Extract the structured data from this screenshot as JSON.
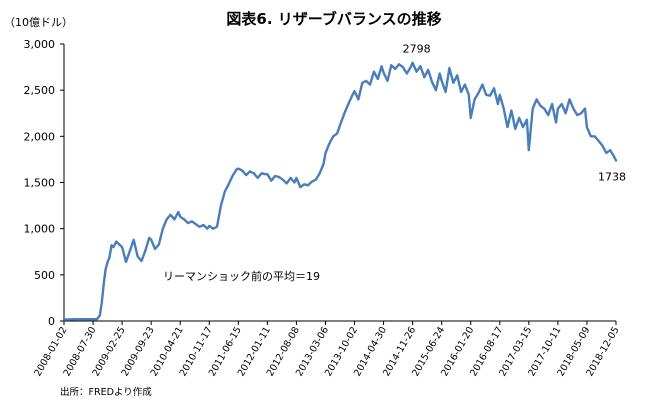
{
  "chart_data": {
    "type": "line",
    "title": "図表6. リザーブバランスの推移",
    "unit_label": "（10億ドル）",
    "ylim": [
      0,
      3000
    ],
    "y_ticks": [
      "0",
      "500",
      "1,000",
      "1,500",
      "2,000",
      "2,500",
      "3,000"
    ],
    "y_tick_values": [
      0,
      500,
      1000,
      1500,
      2000,
      2500,
      3000
    ],
    "x_tick_labels": [
      "2008-01-02",
      "2008-07-30",
      "2009-02-25",
      "2009-09-23",
      "2010-04-21",
      "2010-11-17",
      "2011-06-15",
      "2012-01-11",
      "2012-08-08",
      "2013-03-06",
      "2013-10-02",
      "2014-04-30",
      "2014-11-26",
      "2015-06-24",
      "2016-01-20",
      "2016-08-17",
      "2017-03-15",
      "2017-10-11",
      "2018-05-09",
      "2018-12-05"
    ],
    "annotation_text": "リーマンショック前の平均＝19",
    "series": [
      {
        "color": "#4a7ebb",
        "x": [
          "2008-01-02",
          "2008-04-02",
          "2008-07-02",
          "2008-08-27",
          "2008-09-17",
          "2008-10-01",
          "2008-10-15",
          "2008-10-29",
          "2008-11-12",
          "2008-11-26",
          "2008-12-10",
          "2008-12-24",
          "2009-01-14",
          "2009-02-04",
          "2009-02-25",
          "2009-03-25",
          "2009-04-22",
          "2009-05-20",
          "2009-06-17",
          "2009-07-15",
          "2009-08-12",
          "2009-09-09",
          "2009-09-23",
          "2009-10-21",
          "2009-11-18",
          "2009-12-16",
          "2010-01-13",
          "2010-02-10",
          "2010-03-10",
          "2010-04-07",
          "2010-04-21",
          "2010-05-19",
          "2010-06-16",
          "2010-07-14",
          "2010-08-11",
          "2010-09-08",
          "2010-10-06",
          "2010-11-03",
          "2010-11-17",
          "2010-12-15",
          "2011-01-12",
          "2011-02-09",
          "2011-03-09",
          "2011-04-06",
          "2011-05-04",
          "2011-06-01",
          "2011-06-15",
          "2011-07-13",
          "2011-08-10",
          "2011-09-07",
          "2011-10-05",
          "2011-11-02",
          "2011-11-30",
          "2011-12-28",
          "2012-01-11",
          "2012-02-08",
          "2012-03-07",
          "2012-04-04",
          "2012-05-02",
          "2012-05-30",
          "2012-06-27",
          "2012-07-25",
          "2012-08-08",
          "2012-09-05",
          "2012-10-03",
          "2012-10-31",
          "2012-11-28",
          "2012-12-26",
          "2013-01-23",
          "2013-02-20",
          "2013-03-06",
          "2013-04-03",
          "2013-05-01",
          "2013-05-29",
          "2013-06-26",
          "2013-07-24",
          "2013-08-21",
          "2013-09-18",
          "2013-10-02",
          "2013-10-30",
          "2013-11-27",
          "2013-12-25",
          "2014-01-22",
          "2014-02-19",
          "2014-03-19",
          "2014-04-16",
          "2014-04-30",
          "2014-05-28",
          "2014-06-25",
          "2014-07-23",
          "2014-08-20",
          "2014-09-17",
          "2014-10-15",
          "2014-11-12",
          "2014-11-26",
          "2014-12-24",
          "2015-01-21",
          "2015-02-18",
          "2015-03-18",
          "2015-04-15",
          "2015-05-13",
          "2015-06-10",
          "2015-06-24",
          "2015-07-22",
          "2015-08-19",
          "2015-09-16",
          "2015-10-14",
          "2015-11-11",
          "2015-12-09",
          "2016-01-06",
          "2016-01-20",
          "2016-02-17",
          "2016-03-16",
          "2016-04-13",
          "2016-05-11",
          "2016-06-08",
          "2016-07-06",
          "2016-08-03",
          "2016-08-17",
          "2016-09-14",
          "2016-10-12",
          "2016-11-09",
          "2016-12-07",
          "2017-01-04",
          "2017-02-01",
          "2017-03-01",
          "2017-03-15",
          "2017-04-12",
          "2017-05-10",
          "2017-06-07",
          "2017-07-05",
          "2017-08-02",
          "2017-08-30",
          "2017-09-27",
          "2017-10-11",
          "2017-11-08",
          "2017-12-06",
          "2018-01-03",
          "2018-01-31",
          "2018-02-28",
          "2018-03-28",
          "2018-04-25",
          "2018-05-09",
          "2018-06-06",
          "2018-07-04",
          "2018-08-01",
          "2018-08-29",
          "2018-09-26",
          "2018-10-24",
          "2018-11-21",
          "2018-12-05"
        ],
        "values": [
          15,
          19,
          19,
          20,
          60,
          200,
          400,
          560,
          640,
          690,
          820,
          800,
          860,
          830,
          800,
          640,
          760,
          880,
          700,
          650,
          760,
          900,
          880,
          780,
          830,
          1000,
          1100,
          1150,
          1100,
          1180,
          1130,
          1100,
          1060,
          1080,
          1050,
          1020,
          1040,
          1000,
          1030,
          1000,
          1020,
          1250,
          1400,
          1480,
          1570,
          1640,
          1650,
          1630,
          1580,
          1620,
          1600,
          1550,
          1600,
          1590,
          1590,
          1520,
          1570,
          1560,
          1530,
          1490,
          1550,
          1500,
          1550,
          1450,
          1480,
          1470,
          1510,
          1530,
          1600,
          1700,
          1820,
          1920,
          2000,
          2030,
          2150,
          2260,
          2360,
          2450,
          2490,
          2400,
          2580,
          2600,
          2560,
          2700,
          2620,
          2760,
          2690,
          2600,
          2770,
          2730,
          2780,
          2750,
          2680,
          2750,
          2798,
          2700,
          2760,
          2640,
          2720,
          2590,
          2500,
          2680,
          2600,
          2480,
          2740,
          2580,
          2660,
          2480,
          2560,
          2450,
          2200,
          2400,
          2470,
          2560,
          2450,
          2440,
          2520,
          2350,
          2450,
          2300,
          2100,
          2280,
          2080,
          2200,
          2100,
          2180,
          1850,
          2300,
          2400,
          2330,
          2300,
          2230,
          2350,
          2150,
          2300,
          2350,
          2250,
          2400,
          2300,
          2230,
          2250,
          2300,
          2100,
          2000,
          2000,
          1950,
          1900,
          1820,
          1850,
          1780,
          1738
        ]
      }
    ],
    "data_labels": [
      {
        "text": "2798",
        "x": "2014-11-26",
        "y": 2798
      },
      {
        "text": "1738",
        "x": "2018-12-05",
        "y": 1738
      }
    ]
  },
  "footer": {
    "source": "出所：FREDより作成"
  }
}
